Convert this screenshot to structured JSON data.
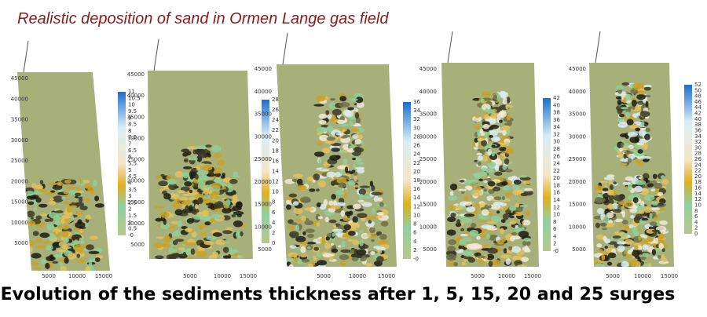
{
  "header": {
    "title": "Realistic deposition of sand in Ormen Lange gas field"
  },
  "caption": "Evolution of the sediments thickness after 1, 5, 15, 20 and 25 surges",
  "panels": [
    {
      "y_ticks": [
        "45000",
        "40000",
        "35000",
        "30000",
        "25000",
        "20000",
        "15000",
        "10000",
        "5000"
      ],
      "x_ticks": [
        "5000",
        "10000",
        "15000"
      ],
      "colorbar_ticks": [
        "11",
        "10.5",
        "10",
        "9.5",
        "9",
        "8.5",
        "8",
        "7.5",
        "7",
        "6.5",
        "6",
        "5.5",
        "5",
        "4.5",
        "4",
        "3.5",
        "3",
        "2.5",
        "2",
        "1.5",
        "1",
        "0.5",
        "-0"
      ]
    },
    {
      "y_ticks": [
        "45000",
        "40000",
        "35000",
        "30000",
        "25000",
        "20000",
        "15000",
        "10000",
        "5000"
      ],
      "x_ticks": [
        "5000",
        "10000",
        "15000"
      ],
      "colorbar_ticks": [
        "28",
        "26",
        "24",
        "22",
        "20",
        "18",
        "16",
        "14",
        "12",
        "10",
        "8",
        "6",
        "4",
        "2",
        "0"
      ]
    },
    {
      "y_ticks": [
        "45000",
        "40000",
        "35000",
        "30000",
        "25000",
        "20000",
        "15000",
        "10000",
        "5000"
      ],
      "x_ticks": [
        "5000",
        "10000",
        "15000"
      ],
      "colorbar_ticks": [
        "36",
        "34",
        "32",
        "30",
        "28",
        "26",
        "24",
        "22",
        "20",
        "18",
        "16",
        "14",
        "12",
        "10",
        "8",
        "6",
        "4",
        "2",
        "-0"
      ]
    },
    {
      "y_ticks": [
        "45000",
        "40000",
        "35000",
        "30000",
        "25000",
        "20000",
        "15000",
        "10000",
        "5000"
      ],
      "x_ticks": [
        "5000",
        "10000",
        "15000"
      ],
      "colorbar_ticks": [
        "42",
        "40",
        "38",
        "36",
        "34",
        "32",
        "30",
        "28",
        "26",
        "24",
        "22",
        "20",
        "18",
        "16",
        "14",
        "12",
        "10",
        "8",
        "6",
        "4",
        "2",
        "-0"
      ]
    },
    {
      "y_ticks": [
        "45000",
        "40000",
        "35000",
        "30000",
        "25000",
        "20000",
        "15000",
        "10000",
        "5000"
      ],
      "x_ticks": [
        "5000",
        "10000",
        "15000"
      ],
      "colorbar_ticks": [
        "52",
        "50",
        "48",
        "46",
        "44",
        "42",
        "40",
        "38",
        "36",
        "34",
        "32",
        "30",
        "28",
        "26",
        "24",
        "22",
        "20",
        "18",
        "16",
        "14",
        "12",
        "10",
        "8",
        "6",
        "4",
        "2",
        "0"
      ]
    }
  ]
}
